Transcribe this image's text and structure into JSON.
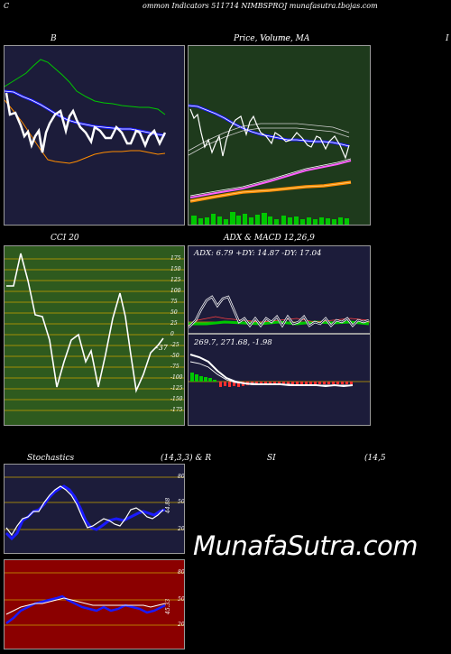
{
  "header": {
    "left": "C",
    "title": "ommon  Indicators 511714  NIMBSPROJ munafasutra.tbojas.com"
  },
  "bb": {
    "label": "B"
  },
  "price": {
    "label": "Price,  Volume,  MA",
    "overlay": "Volume"
  },
  "right_edge": {
    "label": "I"
  },
  "cci": {
    "label": "CCI 20",
    "ticks": [
      "175",
      "150",
      "125",
      "100",
      "75",
      "50",
      "25",
      "0",
      "-25",
      "-50",
      "-75",
      "-100",
      "-125",
      "-150",
      "-175"
    ],
    "last_value": "-37"
  },
  "adx": {
    "label": "ADX  & MACD 12,26,9",
    "readout": "ADX: 6.79 +DY: 14.87 -DY: 17.04"
  },
  "macd": {
    "readout": "269.7,  271.68,  -1.98"
  },
  "stoch": {
    "label": "Stochastics",
    "params": "(14,3,3) & R",
    "ticks": [
      "80",
      "50",
      "20"
    ],
    "last_value": "44.88"
  },
  "rsi": {
    "label": "SI",
    "params": "(14,5",
    "ticks": [
      "80",
      "50",
      "20"
    ],
    "last_value": "45.33"
  },
  "watermark": "MunafaSutra.com",
  "colors": {
    "navy": "#1c1c3a",
    "green_bg": "#1e3a1c",
    "cci_bg": "#2e5a1e",
    "rsi_bg": "#8b0000",
    "accent_blue": "#1a1aff",
    "accent_orange": "#ff8c00",
    "accent_green": "#00c800"
  }
}
